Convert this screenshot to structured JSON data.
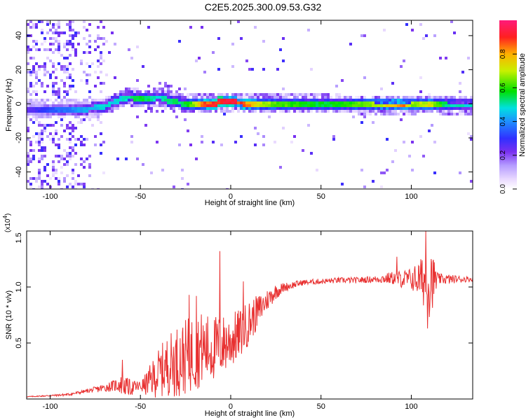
{
  "figure": {
    "title": "C2E5.2025.300.09.53.G32"
  },
  "chart_data": [
    {
      "type": "heatmap",
      "xlabel": "Height of straight line (km)",
      "ylabel": "Frequency (Hz)",
      "xlim": [
        -113,
        134
      ],
      "ylim": [
        -50,
        49
      ],
      "xticks": [
        -100,
        -50,
        0,
        50,
        100
      ],
      "yticks": [
        -40,
        -20,
        0,
        20,
        40
      ],
      "colorbar": {
        "label": "Normalized spectral amplitude",
        "range": [
          0,
          1
        ],
        "ticks": [
          "0.0",
          "0.2",
          "0.4",
          "0.6",
          "0.8"
        ],
        "tick_values": [
          0.0,
          0.2,
          0.4,
          0.6,
          0.8
        ]
      },
      "ridge": {
        "x": [
          -112,
          -100,
          -90,
          -80,
          -70,
          -65,
          -60,
          -55,
          -50,
          -45,
          -40,
          -35,
          -30,
          -25,
          -20,
          -15,
          -10,
          -5,
          0,
          10,
          20,
          40,
          60,
          80,
          95,
          100,
          110,
          120,
          134
        ],
        "frequency": [
          -3,
          -3,
          -3,
          -3,
          -2,
          1,
          3,
          4,
          3,
          3,
          4,
          2,
          1,
          0,
          0,
          0,
          0,
          1,
          1,
          0,
          0,
          0,
          0,
          -1,
          -1,
          -1,
          0,
          -1,
          -1
        ],
        "amplitude": [
          0.25,
          0.35,
          0.4,
          0.45,
          0.5,
          0.5,
          0.5,
          0.55,
          0.6,
          0.55,
          0.5,
          0.55,
          0.55,
          0.6,
          0.7,
          0.9,
          0.95,
          0.98,
          1.0,
          0.85,
          0.7,
          0.6,
          0.6,
          0.7,
          0.9,
          0.7,
          0.75,
          0.55,
          0.5
        ]
      }
    },
    {
      "type": "line",
      "xlabel": "Height of straight line (km)",
      "ylabel": "SNR (10 * v/v)",
      "exponent_label": "(x10",
      "exponent_power": "4",
      "exponent_close": ")",
      "xlim": [
        -113,
        134
      ],
      "ylim": [
        0,
        1.5
      ],
      "xticks": [
        -100,
        -50,
        0,
        50,
        100
      ],
      "yticks": [
        0.5,
        1.0,
        1.5
      ],
      "ytick_labels": [
        "0.5",
        "1.0",
        "1.5"
      ],
      "series": [
        {
          "name": "SNR",
          "color": "#e83030",
          "envelope_x": [
            -113,
            -100,
            -90,
            -80,
            -70,
            -62,
            -55,
            -48,
            -42,
            -35,
            -28,
            -22,
            -16,
            -10,
            -5,
            0,
            5,
            10,
            15,
            20,
            25,
            30,
            40,
            50,
            60,
            70,
            80,
            90,
            95,
            100,
            105,
            110,
            115,
            120,
            134
          ],
          "envelope_y": [
            0.02,
            0.03,
            0.04,
            0.07,
            0.1,
            0.13,
            0.1,
            0.12,
            0.2,
            0.3,
            0.35,
            0.4,
            0.45,
            0.45,
            0.48,
            0.52,
            0.58,
            0.68,
            0.78,
            0.88,
            0.96,
            1.0,
            1.04,
            1.05,
            1.06,
            1.06,
            1.07,
            1.08,
            1.07,
            1.07,
            1.07,
            1.05,
            1.07,
            1.07,
            1.07
          ],
          "noise_x": [
            -113,
            -80,
            -65,
            -60,
            -50,
            -40,
            -30,
            -20,
            -10,
            0,
            10,
            20,
            30,
            40,
            60,
            80,
            90,
            100,
            105,
            110,
            115,
            134
          ],
          "noise_amp": [
            0.003,
            0.015,
            0.05,
            0.09,
            0.05,
            0.22,
            0.32,
            0.35,
            0.3,
            0.25,
            0.2,
            0.1,
            0.04,
            0.025,
            0.025,
            0.03,
            0.06,
            0.1,
            0.18,
            0.35,
            0.05,
            0.02
          ],
          "spikes": [
            {
              "x": -60,
              "y": 0.35
            },
            {
              "x": -23,
              "y": 0.93
            },
            {
              "x": -19,
              "y": 0.92
            },
            {
              "x": -6,
              "y": 1.32
            },
            {
              "x": 7,
              "y": 1.05
            },
            {
              "x": 92,
              "y": 1.27
            },
            {
              "x": 108,
              "y": 1.5
            },
            {
              "x": 109,
              "y": 0.63
            },
            {
              "x": 111,
              "y": 1.25
            }
          ]
        }
      ]
    }
  ]
}
